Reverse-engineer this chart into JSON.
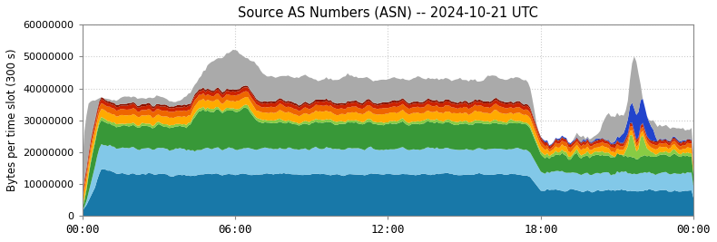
{
  "title": "Source AS Numbers (ASN) -- 2024-10-21 UTC",
  "ylabel": "Bytes per time slot (300 s)",
  "ylim": [
    0,
    60000000
  ],
  "xlim": [
    0,
    288
  ],
  "xtick_labels": [
    "00:00",
    "06:00",
    "12:00",
    "18:00",
    "00:00"
  ],
  "xtick_positions": [
    0,
    72,
    144,
    216,
    288
  ],
  "colors": {
    "teal": "#1878a8",
    "light_blue": "#82c8e8",
    "green": "#389838",
    "lime_green": "#88cc44",
    "orange": "#ffaa00",
    "red_orange": "#ee6600",
    "red": "#cc2200",
    "dark_red": "#881100",
    "blue": "#2244cc",
    "gray": "#aaaaaa"
  },
  "background_color": "#ffffff",
  "grid_color": "#cccccc"
}
